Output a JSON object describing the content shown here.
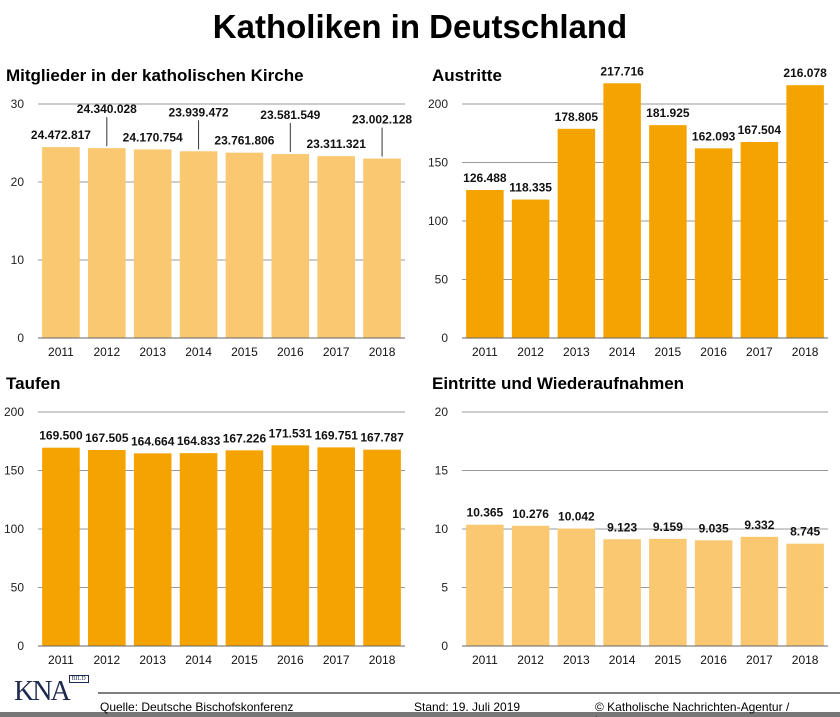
{
  "title": "Katholiken in Deutschland",
  "colors": {
    "light": "#f9c870",
    "dark": "#f5a300",
    "grid": "#999999"
  },
  "chart_data": [
    {
      "type": "bar",
      "title": "Mitglieder in der katholischen Kirche",
      "categories": [
        "2011",
        "2012",
        "2013",
        "2014",
        "2015",
        "2016",
        "2017",
        "2018"
      ],
      "values": [
        24.472817,
        24.340028,
        24.170754,
        23.939472,
        23.761806,
        23.581549,
        23.311321,
        23.002128
      ],
      "labels": [
        "24.472.817",
        "24.340.028",
        "24.170.754",
        "23.939.472",
        "23.761.806",
        "23.581.549",
        "23.311.321",
        "23.002.128"
      ],
      "yticks": [
        0,
        10,
        20,
        30
      ],
      "ylim": [
        0,
        30
      ],
      "color": "light",
      "grid": true
    },
    {
      "type": "bar",
      "title": "Austritte",
      "categories": [
        "2011",
        "2012",
        "2013",
        "2014",
        "2015",
        "2016",
        "2017",
        "2018"
      ],
      "values": [
        126.488,
        118.335,
        178.805,
        217.716,
        181.925,
        162.093,
        167.504,
        216.078
      ],
      "labels": [
        "126.488",
        "118.335",
        "178.805",
        "217.716",
        "181.925",
        "162.093",
        "167.504",
        "216.078"
      ],
      "yticks": [
        0,
        50,
        100,
        150,
        200
      ],
      "ylim": [
        0,
        200
      ],
      "color": "dark",
      "grid": true
    },
    {
      "type": "bar",
      "title": "Taufen",
      "categories": [
        "2011",
        "2012",
        "2013",
        "2014",
        "2015",
        "2016",
        "2017",
        "2018"
      ],
      "values": [
        169.5,
        167.505,
        164.664,
        164.833,
        167.226,
        171.531,
        169.751,
        167.787
      ],
      "labels": [
        "169.500",
        "167.505",
        "164.664",
        "164.833",
        "167.226",
        "171.531",
        "169.751",
        "167.787"
      ],
      "yticks": [
        0,
        50,
        100,
        150,
        200
      ],
      "ylim": [
        0,
        200
      ],
      "color": "dark",
      "grid": true
    },
    {
      "type": "bar",
      "title": "Eintritte und Wiederaufnahmen",
      "categories": [
        "2011",
        "2012",
        "2013",
        "2014",
        "2015",
        "2016",
        "2017",
        "2018"
      ],
      "values": [
        10.365,
        10.276,
        10.042,
        9.123,
        9.159,
        9.035,
        9.332,
        8.745
      ],
      "labels": [
        "10.365",
        "10.276",
        "10.042",
        "9.123",
        "9.159",
        "9.035",
        "9.332",
        "8.745"
      ],
      "yticks": [
        0,
        5,
        10,
        15,
        20
      ],
      "ylim": [
        0,
        20
      ],
      "color": "light",
      "grid": true
    }
  ],
  "footer": {
    "source": "Quelle: Deutsche Bischofskonferenz",
    "date": "Stand: 19. Juli 2019",
    "copyright": "© Katholische Nachrichten-Agentur / isotype.com",
    "logo": "KNA",
    "logo_sub": "BILD"
  }
}
